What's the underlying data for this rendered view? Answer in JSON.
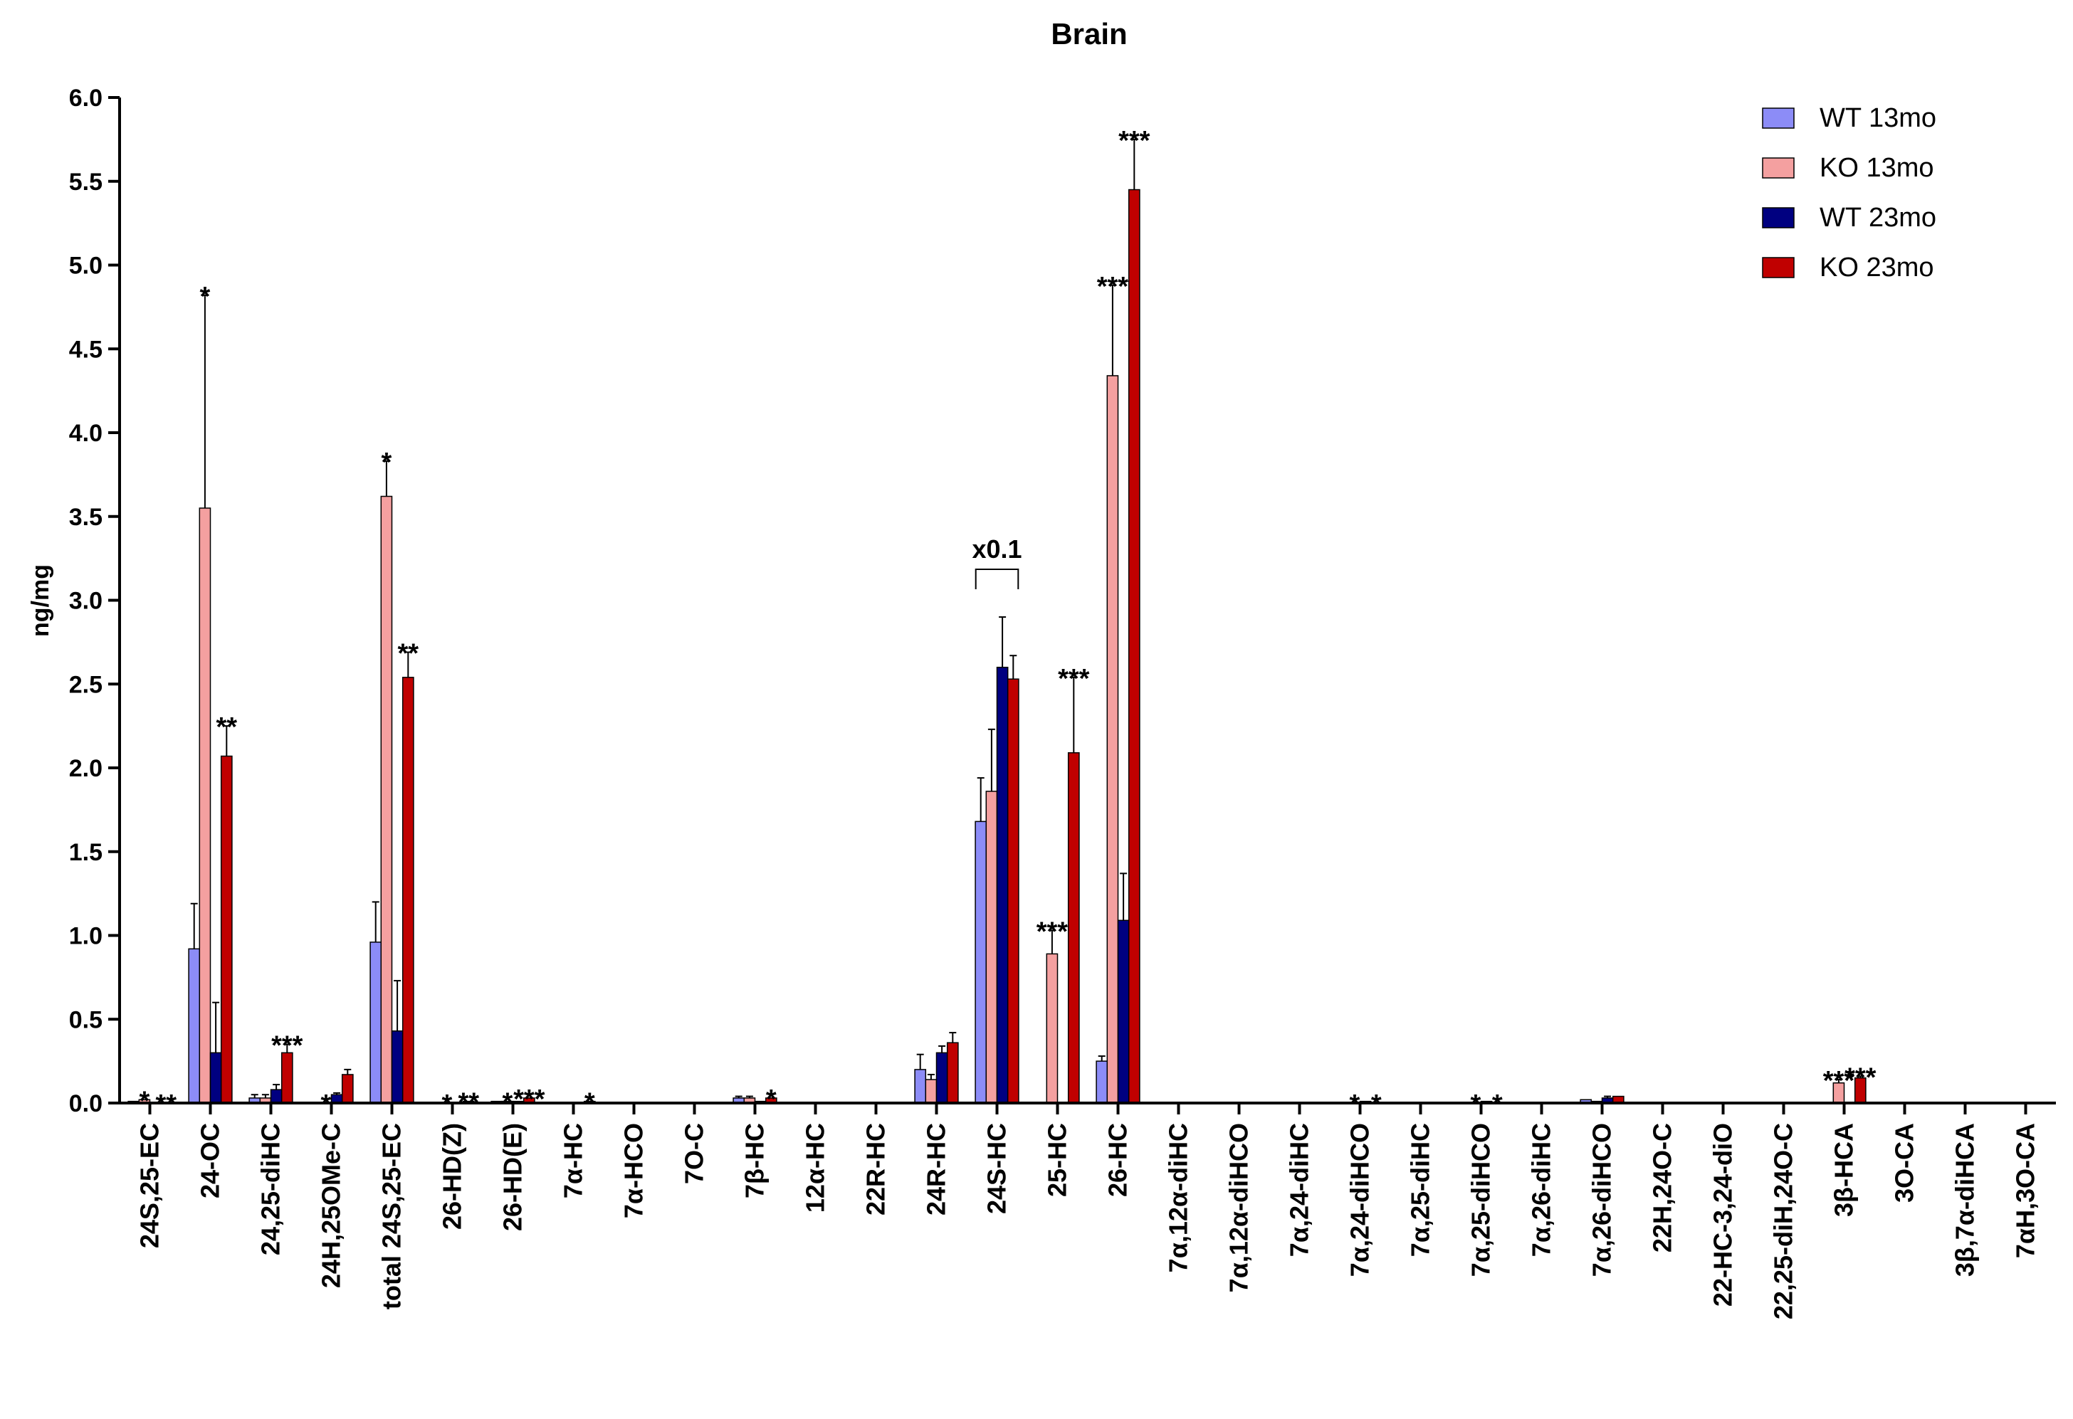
{
  "chart_data": {
    "type": "bar",
    "title": "Brain",
    "xlabel": "",
    "ylabel": "ng/mg",
    "ylim": [
      0,
      6.0
    ],
    "yticks": [
      "0.0",
      "0.5",
      "1.0",
      "1.5",
      "2.0",
      "2.5",
      "3.0",
      "3.5",
      "4.0",
      "4.5",
      "5.0",
      "5.5",
      "6.0"
    ],
    "grid": false,
    "legend_position": "top-right",
    "categories": [
      "24S,25-EC",
      "24-OC",
      "24,25-diHC",
      "24H,25OMe-C",
      "total 24S,25-EC",
      "26-HD(Z)",
      "26-HD(E)",
      "7α-HC",
      "7α-HCO",
      "7O-C",
      "7β-HC",
      "12α-HC",
      "22R-HC",
      "24R-HC",
      "24S-HC",
      "25-HC",
      "26-HC",
      "7α,12α-diHC",
      "7α,12α-diHCO",
      "7α,24-diHC",
      "7α,24-diHCO",
      "7α,25-diHC",
      "7α,25-diHCO",
      "7α,26-diHC",
      "7α,26-diHCO",
      "22H,24O-C",
      "22-HC-3,24-diO",
      "22,25-diH,24O-C",
      "3β-HCA",
      "3O-CA",
      "3β,7α-diHCA",
      "7αH,3O-CA"
    ],
    "series": [
      {
        "name": "WT 13mo",
        "color": "#8c8cf7",
        "values": [
          0.01,
          0.92,
          0.03,
          0.0,
          0.96,
          0.0,
          0.01,
          0.0,
          0.0,
          0.0,
          0.03,
          0.0,
          0.0,
          0.2,
          1.68,
          0.0,
          0.25,
          0.0,
          0.0,
          0.0,
          0.0,
          0.0,
          0.0,
          0.0,
          0.02,
          0.0,
          0.0,
          0.0,
          0.0,
          0.0,
          0.0,
          0.0
        ],
        "errors": [
          0.0,
          0.27,
          0.02,
          0.0,
          0.24,
          0.0,
          0.0,
          0.0,
          0.0,
          0.0,
          0.01,
          0.0,
          0.0,
          0.09,
          0.26,
          0.0,
          0.03,
          0.0,
          0.0,
          0.0,
          0.0,
          0.0,
          0.0,
          0.0,
          0.0,
          0.0,
          0.0,
          0.0,
          0.0,
          0.0,
          0.0,
          0.0
        ]
      },
      {
        "name": "KO 13mo",
        "color": "#f4a0a0",
        "values": [
          0.02,
          3.55,
          0.03,
          0.0,
          3.62,
          0.0,
          0.01,
          0.0,
          0.0,
          0.0,
          0.03,
          0.0,
          0.0,
          0.14,
          1.86,
          0.89,
          4.34,
          0.0,
          0.0,
          0.0,
          0.0,
          0.0,
          0.0,
          0.0,
          0.01,
          0.0,
          0.0,
          0.0,
          0.12,
          0.0,
          0.0,
          0.0
        ],
        "errors": [
          0.0,
          1.27,
          0.02,
          0.0,
          0.21,
          0.0,
          0.0,
          0.0,
          0.0,
          0.0,
          0.01,
          0.0,
          0.0,
          0.03,
          0.37,
          0.14,
          0.54,
          0.0,
          0.0,
          0.0,
          0.0,
          0.0,
          0.0,
          0.0,
          0.0,
          0.0,
          0.0,
          0.0,
          0.02,
          0.0,
          0.0,
          0.0
        ]
      },
      {
        "name": "WT 23mo",
        "color": "#000080",
        "values": [
          0.0,
          0.3,
          0.08,
          0.05,
          0.43,
          0.0,
          0.01,
          0.0,
          0.0,
          0.0,
          0.01,
          0.0,
          0.0,
          0.3,
          2.6,
          0.0,
          1.09,
          0.0,
          0.0,
          0.0,
          0.01,
          0.0,
          0.01,
          0.0,
          0.03,
          0.0,
          0.0,
          0.0,
          0.0,
          0.0,
          0.0,
          0.0
        ],
        "errors": [
          0.0,
          0.3,
          0.03,
          0.01,
          0.3,
          0.0,
          0.0,
          0.0,
          0.0,
          0.0,
          0.0,
          0.0,
          0.0,
          0.04,
          0.3,
          0.0,
          0.28,
          0.0,
          0.0,
          0.0,
          0.0,
          0.0,
          0.0,
          0.0,
          0.01,
          0.0,
          0.0,
          0.0,
          0.0,
          0.0,
          0.0,
          0.0
        ]
      },
      {
        "name": "KO 23mo",
        "color": "#c00000",
        "values": [
          0.0,
          2.07,
          0.3,
          0.17,
          2.54,
          0.01,
          0.03,
          0.01,
          0.0,
          0.0,
          0.03,
          0.0,
          0.0,
          0.36,
          2.53,
          2.09,
          5.45,
          0.0,
          0.0,
          0.0,
          0.0,
          0.0,
          0.0,
          0.0,
          0.04,
          0.0,
          0.0,
          0.0,
          0.15,
          0.0,
          0.0,
          0.0
        ],
        "errors": [
          0.0,
          0.18,
          0.05,
          0.03,
          0.15,
          0.0,
          0.0,
          0.0,
          0.0,
          0.0,
          0.0,
          0.0,
          0.0,
          0.06,
          0.14,
          0.45,
          0.3,
          0.0,
          0.0,
          0.0,
          0.0,
          0.0,
          0.0,
          0.0,
          0.0,
          0.0,
          0.0,
          0.0,
          0.01,
          0.0,
          0.0,
          0.0
        ]
      }
    ],
    "annotations": [
      {
        "text": "*",
        "category": 0,
        "series": 1
      },
      {
        "text": "**",
        "category": 0,
        "series": 3
      },
      {
        "text": "*",
        "category": 1,
        "series": 1
      },
      {
        "text": "**",
        "category": 1,
        "series": 3
      },
      {
        "text": "***",
        "category": 2,
        "series": 3
      },
      {
        "text": "*",
        "category": 3,
        "series": 1
      },
      {
        "text": "*",
        "category": 4,
        "series": 1
      },
      {
        "text": "**",
        "category": 4,
        "series": 3
      },
      {
        "text": "*",
        "category": 5,
        "series": 1
      },
      {
        "text": "**",
        "category": 5,
        "series": 3
      },
      {
        "text": "*",
        "category": 6,
        "series": 1
      },
      {
        "text": "***",
        "category": 6,
        "series": 3
      },
      {
        "text": "*",
        "category": 7,
        "series": 3
      },
      {
        "text": "*",
        "category": 10,
        "series": 3
      },
      {
        "text": "***",
        "category": 15,
        "series": 1
      },
      {
        "text": "***",
        "category": 15,
        "series": 3
      },
      {
        "text": "***",
        "category": 16,
        "series": 1
      },
      {
        "text": "***",
        "category": 16,
        "series": 3
      },
      {
        "text": "*",
        "category": 20,
        "series": 1
      },
      {
        "text": "*",
        "category": 20,
        "series": 3
      },
      {
        "text": "*",
        "category": 22,
        "series": 1
      },
      {
        "text": "*",
        "category": 22,
        "series": 3
      },
      {
        "text": "***",
        "category": 28,
        "series": 1
      },
      {
        "text": "***",
        "category": 28,
        "series": 3
      }
    ],
    "scale_note": {
      "text": "x0.1",
      "category": 14
    }
  }
}
